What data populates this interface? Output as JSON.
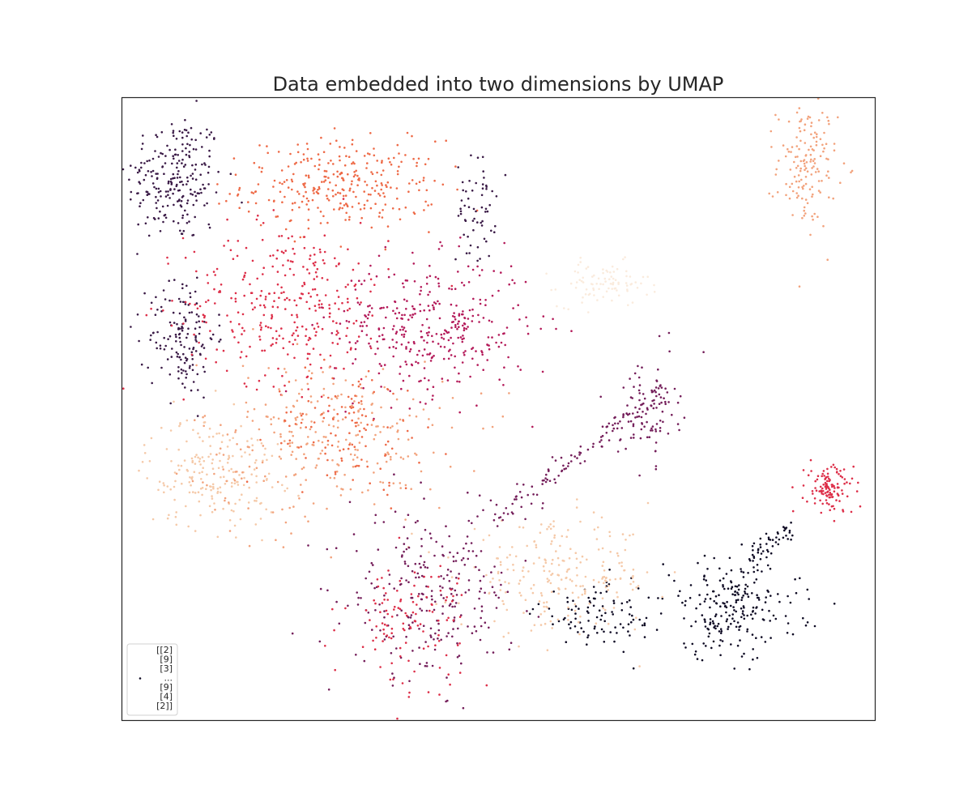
{
  "chart_data": {
    "type": "scatter",
    "title": "Data embedded into two dimensions by UMAP",
    "xlabel": "",
    "ylabel": "",
    "xlim": [
      0,
      100
    ],
    "ylim": [
      0,
      100
    ],
    "grid": false,
    "axis_ticks": false,
    "marker_size": 2,
    "legend": {
      "placement": "lower-left",
      "entries": [
        "[[2]",
        "[9]",
        "[3]",
        "...",
        "[9]",
        "[4]",
        "[2]]"
      ]
    },
    "palette": {
      "c0": "#0f0b24",
      "c1": "#3a1a46",
      "c2": "#741e5a",
      "c3": "#b41b5a",
      "c4": "#dd2e48",
      "c5": "#ee6a47",
      "c6": "#f2a27c",
      "c7": "#f5c9a8",
      "c8": "#faebdd"
    },
    "clusters": [
      {
        "color": "c1",
        "cx": 7,
        "cy": 87,
        "sx": 3.2,
        "sy": 5.2,
        "n": 230
      },
      {
        "color": "c5",
        "cx": 29,
        "cy": 86,
        "sx": 6.5,
        "sy": 3.6,
        "n": 300
      },
      {
        "color": "c1",
        "cx": 47,
        "cy": 82,
        "sx": 1.3,
        "sy": 4.2,
        "n": 60
      },
      {
        "color": "c6",
        "cx": 91,
        "cy": 89,
        "sx": 2.0,
        "sy": 5.0,
        "n": 150
      },
      {
        "color": "c8",
        "cx": 64,
        "cy": 70,
        "sx": 3.0,
        "sy": 1.8,
        "n": 90
      },
      {
        "color": "c1",
        "cx": 8,
        "cy": 62,
        "sx": 2.2,
        "sy": 5.0,
        "n": 150
      },
      {
        "color": "c4",
        "cx": 22,
        "cy": 67,
        "sx": 6.8,
        "sy": 6.5,
        "n": 320
      },
      {
        "color": "c3",
        "cx": 41,
        "cy": 63,
        "sx": 6.5,
        "sy": 5.5,
        "n": 360
      },
      {
        "color": "c7",
        "cx": 12,
        "cy": 40,
        "sx": 4.5,
        "sy": 4.5,
        "n": 200
      },
      {
        "color": "c6",
        "cx": 27,
        "cy": 45,
        "sx": 8.5,
        "sy": 6.5,
        "n": 280
      },
      {
        "color": "c5",
        "cx": 30,
        "cy": 47,
        "sx": 5.0,
        "sy": 5.0,
        "n": 120
      },
      {
        "color": "c2",
        "cx": 70,
        "cy": 50,
        "sx": 2.0,
        "sy": 4.2,
        "n": 90
      },
      {
        "color": "c4",
        "cx": 94,
        "cy": 37,
        "sx": 1.6,
        "sy": 2.0,
        "n": 120
      },
      {
        "color": "c0",
        "cx": 81,
        "cy": 18,
        "sx": 4.5,
        "sy": 4.0,
        "n": 230
      },
      {
        "color": "c0",
        "cx": 64,
        "cy": 17,
        "sx": 4.5,
        "sy": 2.8,
        "n": 100
      },
      {
        "color": "c7",
        "cx": 58,
        "cy": 23,
        "sx": 6.5,
        "sy": 4.2,
        "n": 230
      },
      {
        "color": "c2",
        "cx": 41,
        "cy": 20,
        "sx": 5.5,
        "sy": 6.5,
        "n": 260
      },
      {
        "color": "c4",
        "cx": 38,
        "cy": 16,
        "sx": 4.0,
        "sy": 5.0,
        "n": 120
      }
    ],
    "branches": [
      {
        "color": "c2",
        "x0": 49,
        "y0": 32,
        "x1": 72,
        "y1": 53,
        "n": 120,
        "spread": 1.0
      },
      {
        "color": "c0",
        "x0": 83,
        "y0": 26,
        "x1": 89,
        "y1": 31,
        "n": 45,
        "spread": 0.8
      }
    ]
  }
}
